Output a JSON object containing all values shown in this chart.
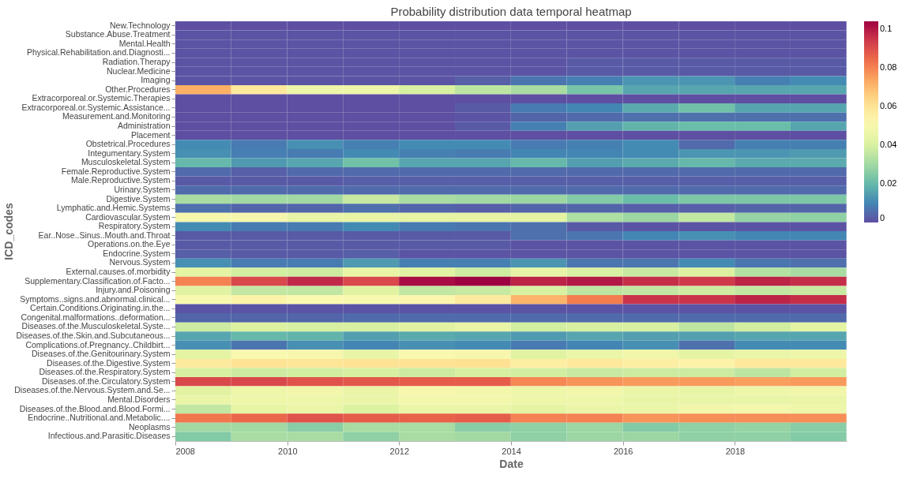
{
  "chart_data": {
    "type": "heatmap",
    "title": "Probability distribution data temporal heatmap",
    "xlabel": "Date",
    "ylabel": "ICD_codes",
    "x": [
      "2008-07",
      "2009-07",
      "2010-07",
      "2011-07",
      "2012-07",
      "2013-07",
      "2014-07",
      "2015-07",
      "2016-07",
      "2017-07",
      "2018-07",
      "2019-07"
    ],
    "xlim": [
      "2008",
      "2020"
    ],
    "xticks": [
      {
        "value": "2008",
        "label": "2008"
      },
      {
        "value": "2010",
        "label": "2010"
      },
      {
        "value": "2012",
        "label": "2012"
      },
      {
        "value": "2014",
        "label": "2014"
      },
      {
        "value": "2016",
        "label": "2016"
      },
      {
        "value": "2018",
        "label": "2018"
      }
    ],
    "y_categories": [
      "New.Technology",
      "Substance.Abuse.Treatment",
      "Mental.Health",
      "Physical.Rehabilitation.and.Diagnosti...",
      "Radiation.Therapy",
      "Nuclear.Medicine",
      "Imaging",
      "Other.Procedures",
      "Extracorporeal.or.Systemic.Therapies",
      "Extracorporeal.or.Systemic.Assistance...",
      "Measurement.and.Monitoring",
      "Administration",
      "Placement",
      "Obstetrical.Procedures",
      "Integumentary.System",
      "Musculoskeletal.System",
      "Female.Reproductive.System",
      "Male.Reproductive.System",
      "Urinary.System",
      "Digestive.System",
      "Lymphatic.and.Hemic.Systems",
      "Cardiovascular.System",
      "Respiratory.System",
      "Ear..Nose..Sinus..Mouth.and.Throat",
      "Operations.on.the.Eye",
      "Endocrine.System",
      "Nervous.System",
      "External.causes.of.morbidity",
      "Supplementary.Classification.of.Facto...",
      "Injury.and.Poisoning",
      "Symptoms..signs.and.abnormal.clinical...",
      "Certain.Conditions.Originating.in.the...",
      "Congenital.malformations..deformation...",
      "Diseases.of.the.Musculoskeletal.Syste...",
      "Diseases.of.the.Skin.and.Subcutaneous...",
      "Complications.of.Pregnancy..Childbirt...",
      "Diseases.of.the.Genitourinary.System",
      "Diseases.of.the.Digestive.System",
      "Diseases.of.the.Respiratory.System",
      "Diseases.of.the.Circulatory.System",
      "Diseases.of.the.Nervous.System.and.Se...",
      "Mental.Disorders",
      "Diseases.of.the.Blood.and.Blood.Formi...",
      "Endocrine..Nutritional.and.Metabolic....",
      "Neoplasms",
      "Infectious.and.Parasitic.Diseases"
    ],
    "cells": [
      [
        0,
        0,
        0,
        0,
        0,
        0,
        0,
        0,
        0,
        0,
        0,
        0
      ],
      [
        0.001,
        0.001,
        0.001,
        0.001,
        0.001,
        0.001,
        0.001,
        0.001,
        0.001,
        0.001,
        0.001,
        0.001
      ],
      [
        0.001,
        0.001,
        0.001,
        0.001,
        0.001,
        0.001,
        0.001,
        0.001,
        0.001,
        0.001,
        0.001,
        0.001
      ],
      [
        0.001,
        0.001,
        0.001,
        0.001,
        0.001,
        0.001,
        0.001,
        0.001,
        0.001,
        0.001,
        0.001,
        0.001
      ],
      [
        0.001,
        0.001,
        0.001,
        0.001,
        0.001,
        0.001,
        0.001,
        0.002,
        0.002,
        0.002,
        0.002,
        0.002
      ],
      [
        0.001,
        0.001,
        0.001,
        0.001,
        0.001,
        0.001,
        0.001,
        0.002,
        0.002,
        0.002,
        0.002,
        0.002
      ],
      [
        0.001,
        0.001,
        0.001,
        0.001,
        0.001,
        0.003,
        0.007,
        0.009,
        0.013,
        0.013,
        0.009,
        0.011
      ],
      [
        0.072,
        0.058,
        0.047,
        0.047,
        0.04,
        0.035,
        0.031,
        0.023,
        0.016,
        0.016,
        0.016,
        0.016
      ],
      [
        0,
        0,
        0,
        0,
        0,
        0,
        0,
        0,
        0,
        0,
        0,
        0
      ],
      [
        0,
        0,
        0,
        0,
        0,
        0.002,
        0.008,
        0.01,
        0.017,
        0.022,
        0.016,
        0.016
      ],
      [
        0,
        0,
        0,
        0,
        0,
        0.001,
        0.004,
        0.005,
        0.006,
        0.006,
        0.006,
        0.006
      ],
      [
        0,
        0,
        0,
        0,
        0,
        0.002,
        0.009,
        0.015,
        0.019,
        0.021,
        0.021,
        0.016
      ],
      [
        0,
        0,
        0,
        0,
        0,
        0,
        0,
        0,
        0,
        0,
        0,
        0
      ],
      [
        0.011,
        0.008,
        0.012,
        0.009,
        0.011,
        0.011,
        0.008,
        0.009,
        0.011,
        0.005,
        0.009,
        0.009
      ],
      [
        0.012,
        0.009,
        0.008,
        0.011,
        0.009,
        0.008,
        0.01,
        0.01,
        0.011,
        0.013,
        0.013,
        0.014
      ],
      [
        0.02,
        0.014,
        0.016,
        0.022,
        0.016,
        0.016,
        0.02,
        0.015,
        0.017,
        0.02,
        0.017,
        0.017
      ],
      [
        0.005,
        0.003,
        0.005,
        0.005,
        0.005,
        0.005,
        0.005,
        0.005,
        0.005,
        0.005,
        0.005,
        0.005
      ],
      [
        0.002,
        0.002,
        0.002,
        0.003,
        0.003,
        0.003,
        0.003,
        0.003,
        0.003,
        0.003,
        0.003,
        0.003
      ],
      [
        0.005,
        0.005,
        0.005,
        0.005,
        0.005,
        0.005,
        0.005,
        0.005,
        0.005,
        0.005,
        0.005,
        0.005
      ],
      [
        0.031,
        0.03,
        0.03,
        0.037,
        0.031,
        0.03,
        0.029,
        0.025,
        0.021,
        0.024,
        0.024,
        0.024
      ],
      [
        0.006,
        0.004,
        0.004,
        0.006,
        0.004,
        0.003,
        0.004,
        0.004,
        0.003,
        0.003,
        0.004,
        0.004
      ],
      [
        0.05,
        0.05,
        0.045,
        0.045,
        0.044,
        0.044,
        0.043,
        0.032,
        0.029,
        0.036,
        0.028,
        0.027
      ],
      [
        0.011,
        0.008,
        0.008,
        0.011,
        0.008,
        0.007,
        0.006,
        0.002,
        0.001,
        0.001,
        0.001,
        0.001
      ],
      [
        0.002,
        0.002,
        0.002,
        0.002,
        0.002,
        0.002,
        0.006,
        0.007,
        0.01,
        0.012,
        0.01,
        0.01
      ],
      [
        0.002,
        0.002,
        0.002,
        0.002,
        0.002,
        0.002,
        0.001,
        0.001,
        0.001,
        0.001,
        0.001,
        0.001
      ],
      [
        0.003,
        0.002,
        0.002,
        0.003,
        0.001,
        0.001,
        0.001,
        0.001,
        0.001,
        0.001,
        0.001,
        0.001
      ],
      [
        0.012,
        0.008,
        0.008,
        0.014,
        0.009,
        0.009,
        0.013,
        0.007,
        0.007,
        0.011,
        0.007,
        0.006
      ],
      [
        0.043,
        0.039,
        0.038,
        0.045,
        0.042,
        0.038,
        0.045,
        0.04,
        0.037,
        0.041,
        0.033,
        0.031
      ],
      [
        0.08,
        0.091,
        0.097,
        0.091,
        0.102,
        0.104,
        0.098,
        0.1,
        0.096,
        0.094,
        0.098,
        0.096
      ],
      [
        0.042,
        0.036,
        0.036,
        0.042,
        0.036,
        0.037,
        0.04,
        0.035,
        0.036,
        0.038,
        0.036,
        0.037
      ],
      [
        0.051,
        0.054,
        0.052,
        0.051,
        0.053,
        0.057,
        0.071,
        0.081,
        0.095,
        0.095,
        0.098,
        0.096
      ],
      [
        0.001,
        0.001,
        0.001,
        0.001,
        0.001,
        0.001,
        0.001,
        0.001,
        0.001,
        0.001,
        0.001,
        0.001
      ],
      [
        0.004,
        0.004,
        0.004,
        0.005,
        0.005,
        0.005,
        0.005,
        0.005,
        0.005,
        0.005,
        0.005,
        0.005
      ],
      [
        0.038,
        0.041,
        0.04,
        0.04,
        0.042,
        0.045,
        0.039,
        0.04,
        0.04,
        0.035,
        0.039,
        0.043
      ],
      [
        0.016,
        0.02,
        0.019,
        0.015,
        0.017,
        0.016,
        0.014,
        0.016,
        0.015,
        0.015,
        0.016,
        0.016
      ],
      [
        0.012,
        0.007,
        0.012,
        0.01,
        0.012,
        0.011,
        0.008,
        0.01,
        0.012,
        0.006,
        0.011,
        0.011
      ],
      [
        0.043,
        0.051,
        0.05,
        0.045,
        0.051,
        0.05,
        0.042,
        0.046,
        0.048,
        0.043,
        0.046,
        0.047
      ],
      [
        0.057,
        0.06,
        0.059,
        0.06,
        0.06,
        0.061,
        0.056,
        0.058,
        0.056,
        0.054,
        0.058,
        0.058
      ],
      [
        0.04,
        0.038,
        0.039,
        0.04,
        0.038,
        0.04,
        0.039,
        0.037,
        0.038,
        0.038,
        0.035,
        0.039
      ],
      [
        0.091,
        0.091,
        0.089,
        0.088,
        0.087,
        0.087,
        0.079,
        0.077,
        0.076,
        0.076,
        0.075,
        0.076
      ],
      [
        0.042,
        0.047,
        0.048,
        0.046,
        0.05,
        0.049,
        0.047,
        0.048,
        0.046,
        0.045,
        0.047,
        0.048
      ],
      [
        0.046,
        0.047,
        0.047,
        0.046,
        0.049,
        0.049,
        0.047,
        0.047,
        0.045,
        0.045,
        0.045,
        0.046
      ],
      [
        0.036,
        0.044,
        0.046,
        0.041,
        0.046,
        0.046,
        0.043,
        0.046,
        0.046,
        0.048,
        0.049,
        0.047
      ],
      [
        0.082,
        0.085,
        0.089,
        0.087,
        0.086,
        0.087,
        0.08,
        0.08,
        0.077,
        0.078,
        0.078,
        0.078
      ],
      [
        0.03,
        0.03,
        0.026,
        0.031,
        0.031,
        0.026,
        0.027,
        0.029,
        0.025,
        0.027,
        0.028,
        0.026
      ],
      [
        0.025,
        0.031,
        0.031,
        0.027,
        0.031,
        0.03,
        0.027,
        0.029,
        0.029,
        0.027,
        0.027,
        0.025
      ]
    ],
    "clim": [
      0,
      0.104
    ],
    "cticks": [
      0,
      0.02,
      0.04,
      0.06,
      0.08,
      0.1
    ],
    "grid": false
  }
}
